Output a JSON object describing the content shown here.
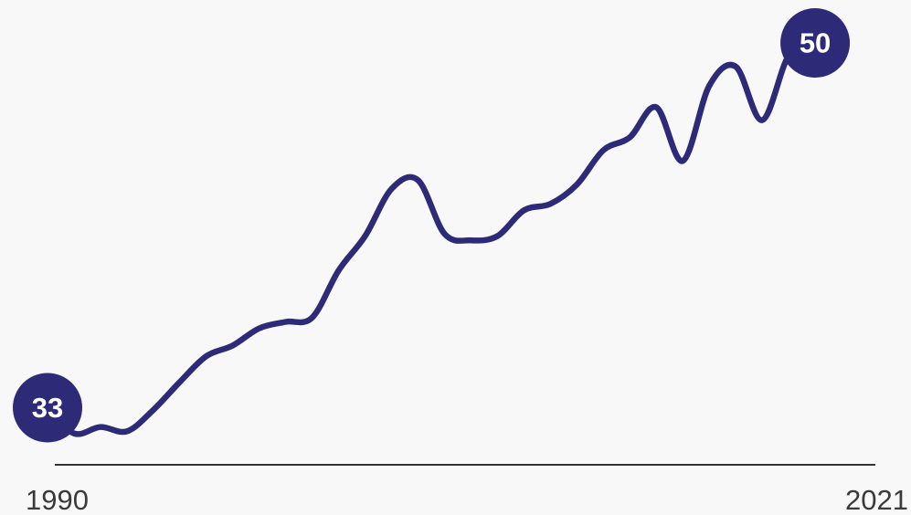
{
  "chart_data": {
    "type": "line",
    "title": "",
    "xlabel": "",
    "ylabel": "",
    "x": [
      1990,
      1991,
      1992,
      1993,
      1994,
      1995,
      1996,
      1997,
      1998,
      1999,
      2000,
      2001,
      2002,
      2003,
      2004,
      2005,
      2006,
      2007,
      2008,
      2009,
      2010,
      2011,
      2012,
      2013,
      2014,
      2015,
      2016,
      2017,
      2018,
      2019,
      2020,
      2021
    ],
    "series": [
      {
        "name": "",
        "values": [
          33.0,
          31.8,
          32.1,
          31.9,
          32.9,
          34.2,
          35.4,
          35.9,
          36.7,
          37.0,
          37.2,
          39.4,
          41.0,
          43.2,
          43.6,
          41.1,
          40.8,
          41.0,
          42.2,
          42.5,
          43.4,
          45.0,
          45.6,
          47.0,
          44.5,
          48.0,
          48.9,
          46.4,
          49.4,
          50.0,
          null,
          null
        ]
      }
    ],
    "ylim": [
      28,
      52
    ],
    "grid": false,
    "legend": "none",
    "xticks": [
      "1990",
      "2021"
    ],
    "end_labels": {
      "start": "33",
      "end": "50"
    },
    "colors": {
      "line": "#2d2a78",
      "badge": "#2d2a78",
      "badge_text": "#ffffff",
      "axis": "#333333",
      "tick_text": "#3a3a3a",
      "background": "#f8f8f8"
    }
  }
}
